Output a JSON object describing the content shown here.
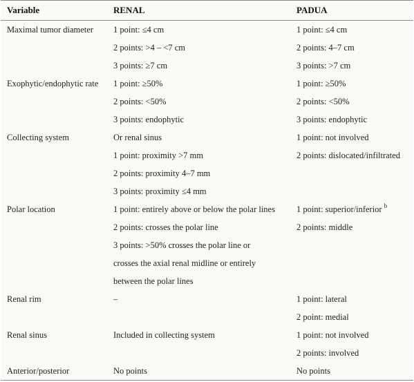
{
  "header": {
    "variable": "Variable",
    "renal": "RENAL",
    "padua": "PADUA"
  },
  "rows": [
    {
      "variable": "Maximal tumor diameter",
      "renal": [
        "1 point: ≤4 cm",
        "2 points: >4 – <7 cm",
        "3 points: ≥7 cm"
      ],
      "padua": [
        "1 point: ≤4 cm",
        "2 points: 4–7 cm",
        "3 points: >7 cm"
      ]
    },
    {
      "variable": "Exophytic/endophytic rate",
      "renal": [
        "1 point: ≥50%",
        "2 points: <50%",
        "3 points: endophytic"
      ],
      "padua": [
        "1 point: ≥50%",
        "2 points: <50%",
        "3 points: endophytic"
      ]
    },
    {
      "variable": "Collecting system",
      "renal": [
        "Or renal sinus",
        "1 point: proximity >7 mm",
        "2 points: proximity 4–7 mm",
        "3 points: proximity ≤4 mm"
      ],
      "padua": [
        "1 point: not involved",
        "2 points: dislocated/infiltrated"
      ]
    },
    {
      "variable": "Polar location",
      "renal": [
        "1 point: entirely above or below the polar lines",
        "2 points: crosses the polar line",
        "3 points: >50% crosses the polar line or",
        "crosses the axial renal midline or entirely",
        "between the polar lines"
      ],
      "padua": [
        "1 point: superior/inferior",
        "2 points: middle"
      ],
      "padua_sup": "b"
    },
    {
      "variable": "Renal rim",
      "renal": [
        "–"
      ],
      "padua": [
        "1 point: lateral",
        "2 point: medial"
      ]
    },
    {
      "variable": "Renal sinus",
      "renal": [
        "Included in collecting system"
      ],
      "padua": [
        "1 point: not involved",
        "2 points: involved"
      ]
    },
    {
      "variable": "Anterior/posterior",
      "renal": [
        "No points"
      ],
      "padua": [
        "No points"
      ]
    }
  ]
}
